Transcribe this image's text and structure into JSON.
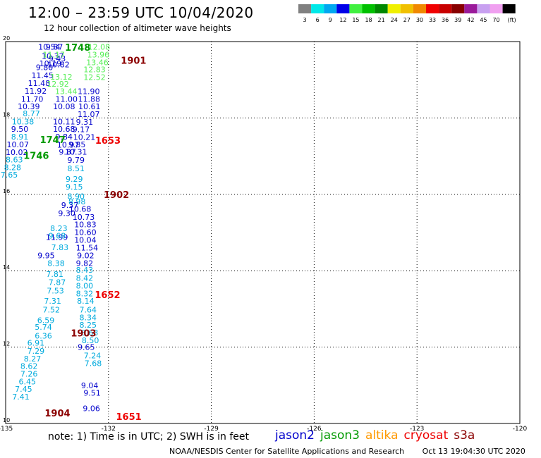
{
  "title": "12:00 – 23:59 UTC 10/04/2020",
  "subtitle": "12 hour collection of altimeter wave heights",
  "note": "note:  1) Time is in UTC;  2) SWH is in feet",
  "credit": "NOAA/NESDIS Center for Satellite Applications and Research",
  "timestamp": "Oct 13 19:04:30 UTC 2020",
  "colorbar": {
    "labels": [
      "3",
      "6",
      "9",
      "12",
      "15",
      "18",
      "21",
      "24",
      "27",
      "30",
      "33",
      "36",
      "39",
      "42",
      "45",
      "70",
      "(ft)"
    ],
    "colors": [
      "#808080",
      "#00e8e8",
      "#00a8f0",
      "#0000e8",
      "#40f040",
      "#00c000",
      "#008800",
      "#f0f000",
      "#f0c000",
      "#f08800",
      "#f00000",
      "#c80000",
      "#880000",
      "#9a1a9a",
      "#c8a0f0",
      "#f0a0f0",
      "#000000"
    ]
  },
  "satellites": [
    {
      "name": "jason2",
      "color": "#0000cc"
    },
    {
      "name": "jason3",
      "color": "#009900"
    },
    {
      "name": "altika",
      "color": "#ff9900"
    },
    {
      "name": "cryosat",
      "color": "#ee0000"
    },
    {
      "name": "s3a",
      "color": "#8b0000"
    }
  ],
  "chart_data": {
    "type": "scatter",
    "title": "12:00 – 23:59 UTC 10/04/2020",
    "xlim": [
      -135,
      -120
    ],
    "ylim": [
      10,
      20
    ],
    "xticks": [
      {
        "v": -135,
        "label": "-135"
      },
      {
        "v": -132,
        "label": "-132"
      },
      {
        "v": -129,
        "label": "-129"
      },
      {
        "v": -126,
        "label": "-126"
      },
      {
        "v": -123,
        "label": "-123"
      },
      {
        "v": -120,
        "label": "-120"
      }
    ],
    "yticks": [
      {
        "v": 10,
        "label": "10"
      },
      {
        "v": 12,
        "label": "12"
      },
      {
        "v": 14,
        "label": "14"
      },
      {
        "v": 16,
        "label": "16"
      },
      {
        "v": 18,
        "label": "18"
      },
      {
        "v": 20,
        "label": "20"
      }
    ],
    "grid": true,
    "pass_times": [
      {
        "time": "1748",
        "x": -133.27,
        "y": 19.85,
        "color": "#009900"
      },
      {
        "time": "1901",
        "x": -131.64,
        "y": 19.51,
        "color": "#8b0000"
      },
      {
        "time": "1747",
        "x": -134.0,
        "y": 17.44,
        "color": "#009900"
      },
      {
        "time": "1653",
        "x": -132.39,
        "y": 17.42,
        "color": "#ee0000"
      },
      {
        "time": "1746",
        "x": -134.48,
        "y": 17.02,
        "color": "#009900"
      },
      {
        "time": "1902",
        "x": -132.14,
        "y": 16.0,
        "color": "#8b0000"
      },
      {
        "time": "1652",
        "x": -132.4,
        "y": 13.38,
        "color": "#ee0000"
      },
      {
        "time": "1903",
        "x": -133.1,
        "y": 12.37,
        "color": "#8b0000"
      },
      {
        "time": "1904",
        "x": -133.86,
        "y": 10.28,
        "color": "#8b0000"
      },
      {
        "time": "1651",
        "x": -131.78,
        "y": 10.18,
        "color": "#ee0000"
      }
    ],
    "series": [
      {
        "name": "jason2",
        "color": "#0000cc",
        "points": [
          {
            "x": -134.05,
            "y": 19.86,
            "v": "10.54"
          },
          {
            "x": -133.83,
            "y": 19.86,
            "v": "9.87"
          },
          {
            "x": -133.95,
            "y": 19.62,
            "v": "10.37"
          },
          {
            "x": -133.75,
            "y": 19.56,
            "v": "9.43"
          },
          {
            "x": -134.02,
            "y": 19.43,
            "v": "10.19"
          },
          {
            "x": -133.78,
            "y": 19.4,
            "v": "10.82"
          },
          {
            "x": -134.12,
            "y": 19.33,
            "v": "9.80"
          },
          {
            "x": -134.25,
            "y": 19.11,
            "v": "11.45"
          },
          {
            "x": -134.35,
            "y": 18.91,
            "v": "11.48"
          },
          {
            "x": -134.45,
            "y": 18.71,
            "v": "11.92"
          },
          {
            "x": -134.55,
            "y": 18.5,
            "v": "11.70"
          },
          {
            "x": -133.55,
            "y": 18.5,
            "v": "11.00"
          },
          {
            "x": -134.65,
            "y": 18.3,
            "v": "10.39"
          },
          {
            "x": -133.62,
            "y": 18.3,
            "v": "10.08"
          },
          {
            "x": -133.62,
            "y": 17.91,
            "v": "10.11"
          },
          {
            "x": -133.62,
            "y": 17.71,
            "v": "10.68"
          },
          {
            "x": -134.84,
            "y": 17.71,
            "v": "9.50"
          },
          {
            "x": -134.97,
            "y": 17.31,
            "v": "10.07"
          },
          {
            "x": -135.0,
            "y": 17.1,
            "v": "10.02"
          },
          {
            "x": -133.55,
            "y": 17.51,
            "v": "9.84"
          },
          {
            "x": -133.5,
            "y": 17.3,
            "v": "10.97"
          },
          {
            "x": -133.45,
            "y": 17.11,
            "v": "9.87"
          },
          {
            "x": -132.9,
            "y": 18.7,
            "v": "11.90"
          },
          {
            "x": -132.89,
            "y": 18.5,
            "v": "11.88"
          },
          {
            "x": -132.88,
            "y": 18.3,
            "v": "10.61"
          },
          {
            "x": -132.9,
            "y": 18.1,
            "v": "11.07"
          },
          {
            "x": -132.95,
            "y": 17.9,
            "v": "9.31"
          },
          {
            "x": -133.05,
            "y": 17.7,
            "v": "9.17"
          },
          {
            "x": -133.03,
            "y": 17.5,
            "v": "10.21"
          },
          {
            "x": -133.17,
            "y": 17.31,
            "v": "9.85"
          },
          {
            "x": -133.27,
            "y": 17.11,
            "v": "10.31"
          },
          {
            "x": -133.2,
            "y": 16.9,
            "v": "9.79"
          },
          {
            "x": -133.38,
            "y": 15.72,
            "v": "9.37"
          },
          {
            "x": -133.47,
            "y": 15.51,
            "v": "9.30"
          },
          {
            "x": -133.15,
            "y": 15.62,
            "v": "10.68"
          },
          {
            "x": -133.05,
            "y": 15.41,
            "v": "10.73"
          },
          {
            "x": -133.0,
            "y": 15.21,
            "v": "10.83"
          },
          {
            "x": -133.0,
            "y": 15.01,
            "v": "10.60"
          },
          {
            "x": -133.0,
            "y": 14.81,
            "v": "10.04"
          },
          {
            "x": -132.95,
            "y": 14.6,
            "v": "11.54"
          },
          {
            "x": -133.83,
            "y": 14.88,
            "v": "11.99"
          },
          {
            "x": -134.07,
            "y": 14.4,
            "v": "9.95"
          },
          {
            "x": -132.92,
            "y": 14.4,
            "v": "9.02"
          },
          {
            "x": -132.95,
            "y": 14.2,
            "v": "9.82"
          },
          {
            "x": -132.9,
            "y": 12.0,
            "v": "9.65"
          },
          {
            "x": -132.8,
            "y": 11.0,
            "v": "9.04"
          },
          {
            "x": -132.73,
            "y": 10.8,
            "v": "9.51"
          },
          {
            "x": -132.75,
            "y": 10.4,
            "v": "9.06"
          }
        ]
      },
      {
        "name": "jason3",
        "color": "#55ee55",
        "points": [
          {
            "x": -132.6,
            "y": 19.86,
            "v": "12.08"
          },
          {
            "x": -132.62,
            "y": 19.66,
            "v": "13.96"
          },
          {
            "x": -133.92,
            "y": 19.66,
            "v": "11.17"
          },
          {
            "x": -132.65,
            "y": 19.46,
            "v": "13.46"
          },
          {
            "x": -132.73,
            "y": 19.27,
            "v": "12.83"
          },
          {
            "x": -132.73,
            "y": 19.07,
            "v": "12.52"
          },
          {
            "x": -133.7,
            "y": 19.08,
            "v": "13.12"
          },
          {
            "x": -133.8,
            "y": 18.89,
            "v": "12.92"
          },
          {
            "x": -133.56,
            "y": 18.7,
            "v": "13.44"
          }
        ]
      },
      {
        "name": "altika",
        "color": "#00aadd",
        "points": [
          {
            "x": -134.5,
            "y": 18.12,
            "v": "8.77"
          },
          {
            "x": -134.82,
            "y": 17.91,
            "v": "10.38"
          },
          {
            "x": -134.84,
            "y": 17.51,
            "v": "8.91"
          },
          {
            "x": -135.0,
            "y": 16.91,
            "v": "8.63"
          },
          {
            "x": -135.05,
            "y": 16.71,
            "v": "8.28"
          },
          {
            "x": -135.15,
            "y": 16.51,
            "v": "7.65"
          },
          {
            "x": -133.2,
            "y": 16.68,
            "v": "8.51"
          },
          {
            "x": -133.25,
            "y": 16.4,
            "v": "9.29"
          },
          {
            "x": -133.25,
            "y": 16.2,
            "v": "9.15"
          },
          {
            "x": -133.2,
            "y": 15.95,
            "v": "8.90"
          },
          {
            "x": -133.17,
            "y": 15.81,
            "v": "8.98"
          },
          {
            "x": -133.7,
            "y": 15.11,
            "v": "8.23"
          },
          {
            "x": -133.75,
            "y": 14.92,
            "v": "9.68"
          },
          {
            "x": -133.67,
            "y": 14.61,
            "v": "7.83"
          },
          {
            "x": -133.78,
            "y": 14.2,
            "v": "8.38"
          },
          {
            "x": -133.82,
            "y": 13.91,
            "v": "7.81"
          },
          {
            "x": -133.75,
            "y": 13.7,
            "v": "7.87"
          },
          {
            "x": -133.8,
            "y": 13.48,
            "v": "7.53"
          },
          {
            "x": -133.88,
            "y": 13.21,
            "v": "7.31"
          },
          {
            "x": -133.92,
            "y": 12.98,
            "v": "7.52"
          },
          {
            "x": -134.08,
            "y": 12.7,
            "v": "6.59"
          },
          {
            "x": -134.15,
            "y": 12.53,
            "v": "5.74"
          },
          {
            "x": -134.15,
            "y": 12.3,
            "v": "6.36"
          },
          {
            "x": -134.37,
            "y": 12.11,
            "v": "6.91"
          },
          {
            "x": -134.37,
            "y": 11.9,
            "v": "7.29"
          },
          {
            "x": -134.47,
            "y": 11.7,
            "v": "8.27"
          },
          {
            "x": -134.57,
            "y": 11.5,
            "v": "8.62"
          },
          {
            "x": -134.57,
            "y": 11.3,
            "v": "7.26"
          },
          {
            "x": -134.62,
            "y": 11.1,
            "v": "6.45"
          },
          {
            "x": -134.73,
            "y": 10.9,
            "v": "7.45"
          },
          {
            "x": -134.81,
            "y": 10.7,
            "v": "7.41"
          },
          {
            "x": -132.95,
            "y": 14.02,
            "v": "8.43"
          },
          {
            "x": -132.95,
            "y": 13.81,
            "v": "8.42"
          },
          {
            "x": -132.95,
            "y": 13.61,
            "v": "8.00"
          },
          {
            "x": -132.95,
            "y": 13.4,
            "v": "8.32"
          },
          {
            "x": -132.92,
            "y": 13.21,
            "v": "8.14"
          },
          {
            "x": -132.85,
            "y": 12.98,
            "v": "7.64"
          },
          {
            "x": -132.85,
            "y": 12.78,
            "v": "8.34"
          },
          {
            "x": -132.85,
            "y": 12.58,
            "v": "8.25"
          },
          {
            "x": -132.8,
            "y": 12.38,
            "v": "8.63"
          },
          {
            "x": -132.78,
            "y": 12.18,
            "v": "8.50"
          },
          {
            "x": -132.72,
            "y": 11.78,
            "v": "7.24"
          },
          {
            "x": -132.7,
            "y": 11.58,
            "v": "7.68"
          }
        ]
      }
    ]
  }
}
